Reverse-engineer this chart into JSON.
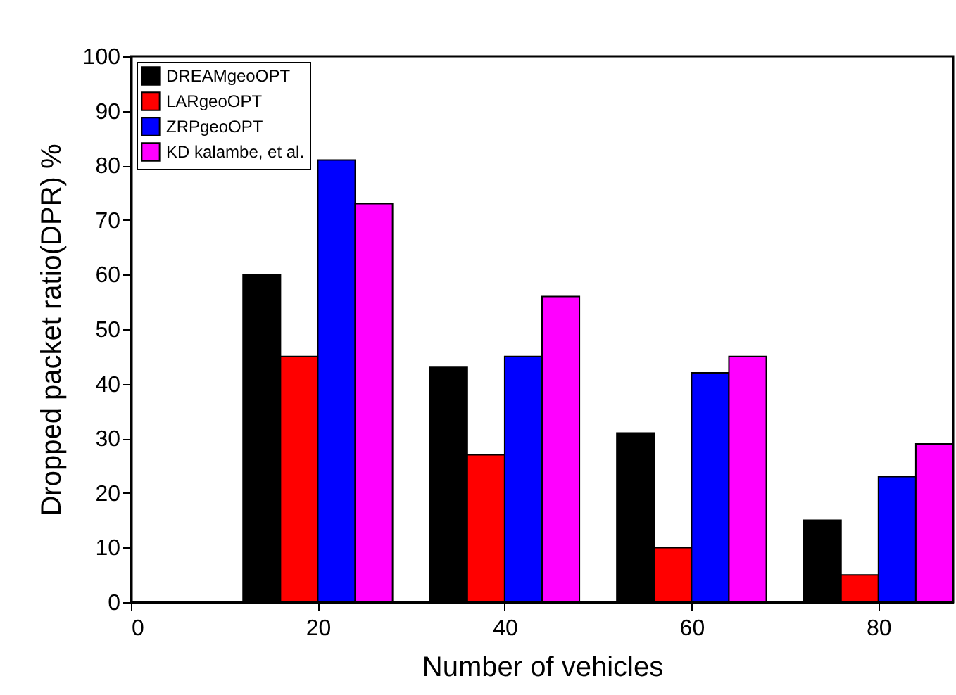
{
  "chart_data": {
    "type": "bar",
    "xlabel": "Number of vehicles",
    "ylabel": "Dropped packet ratio(DPR) %",
    "x": [
      20,
      40,
      60,
      80
    ],
    "series": [
      {
        "name": "DREAMgeoOPT",
        "color": "#000000",
        "values": [
          60,
          43,
          31,
          15
        ]
      },
      {
        "name": "LARgeoOPT",
        "color": "#ff0000",
        "values": [
          45,
          27,
          10,
          5
        ]
      },
      {
        "name": "ZRPgeoOPT",
        "color": "#0000ff",
        "values": [
          81,
          45,
          42,
          23
        ]
      },
      {
        "name": "KD kalambe, et al.",
        "color": "#ff00ff",
        "values": [
          73,
          56,
          45,
          29
        ]
      }
    ],
    "xlim": [
      0,
      88
    ],
    "xticks": [
      0,
      20,
      40,
      60,
      80
    ],
    "ylim": [
      0,
      100
    ],
    "yticks": [
      0,
      10,
      20,
      30,
      40,
      50,
      60,
      70,
      80,
      90,
      100
    ],
    "legend": "top left",
    "grid": false
  }
}
